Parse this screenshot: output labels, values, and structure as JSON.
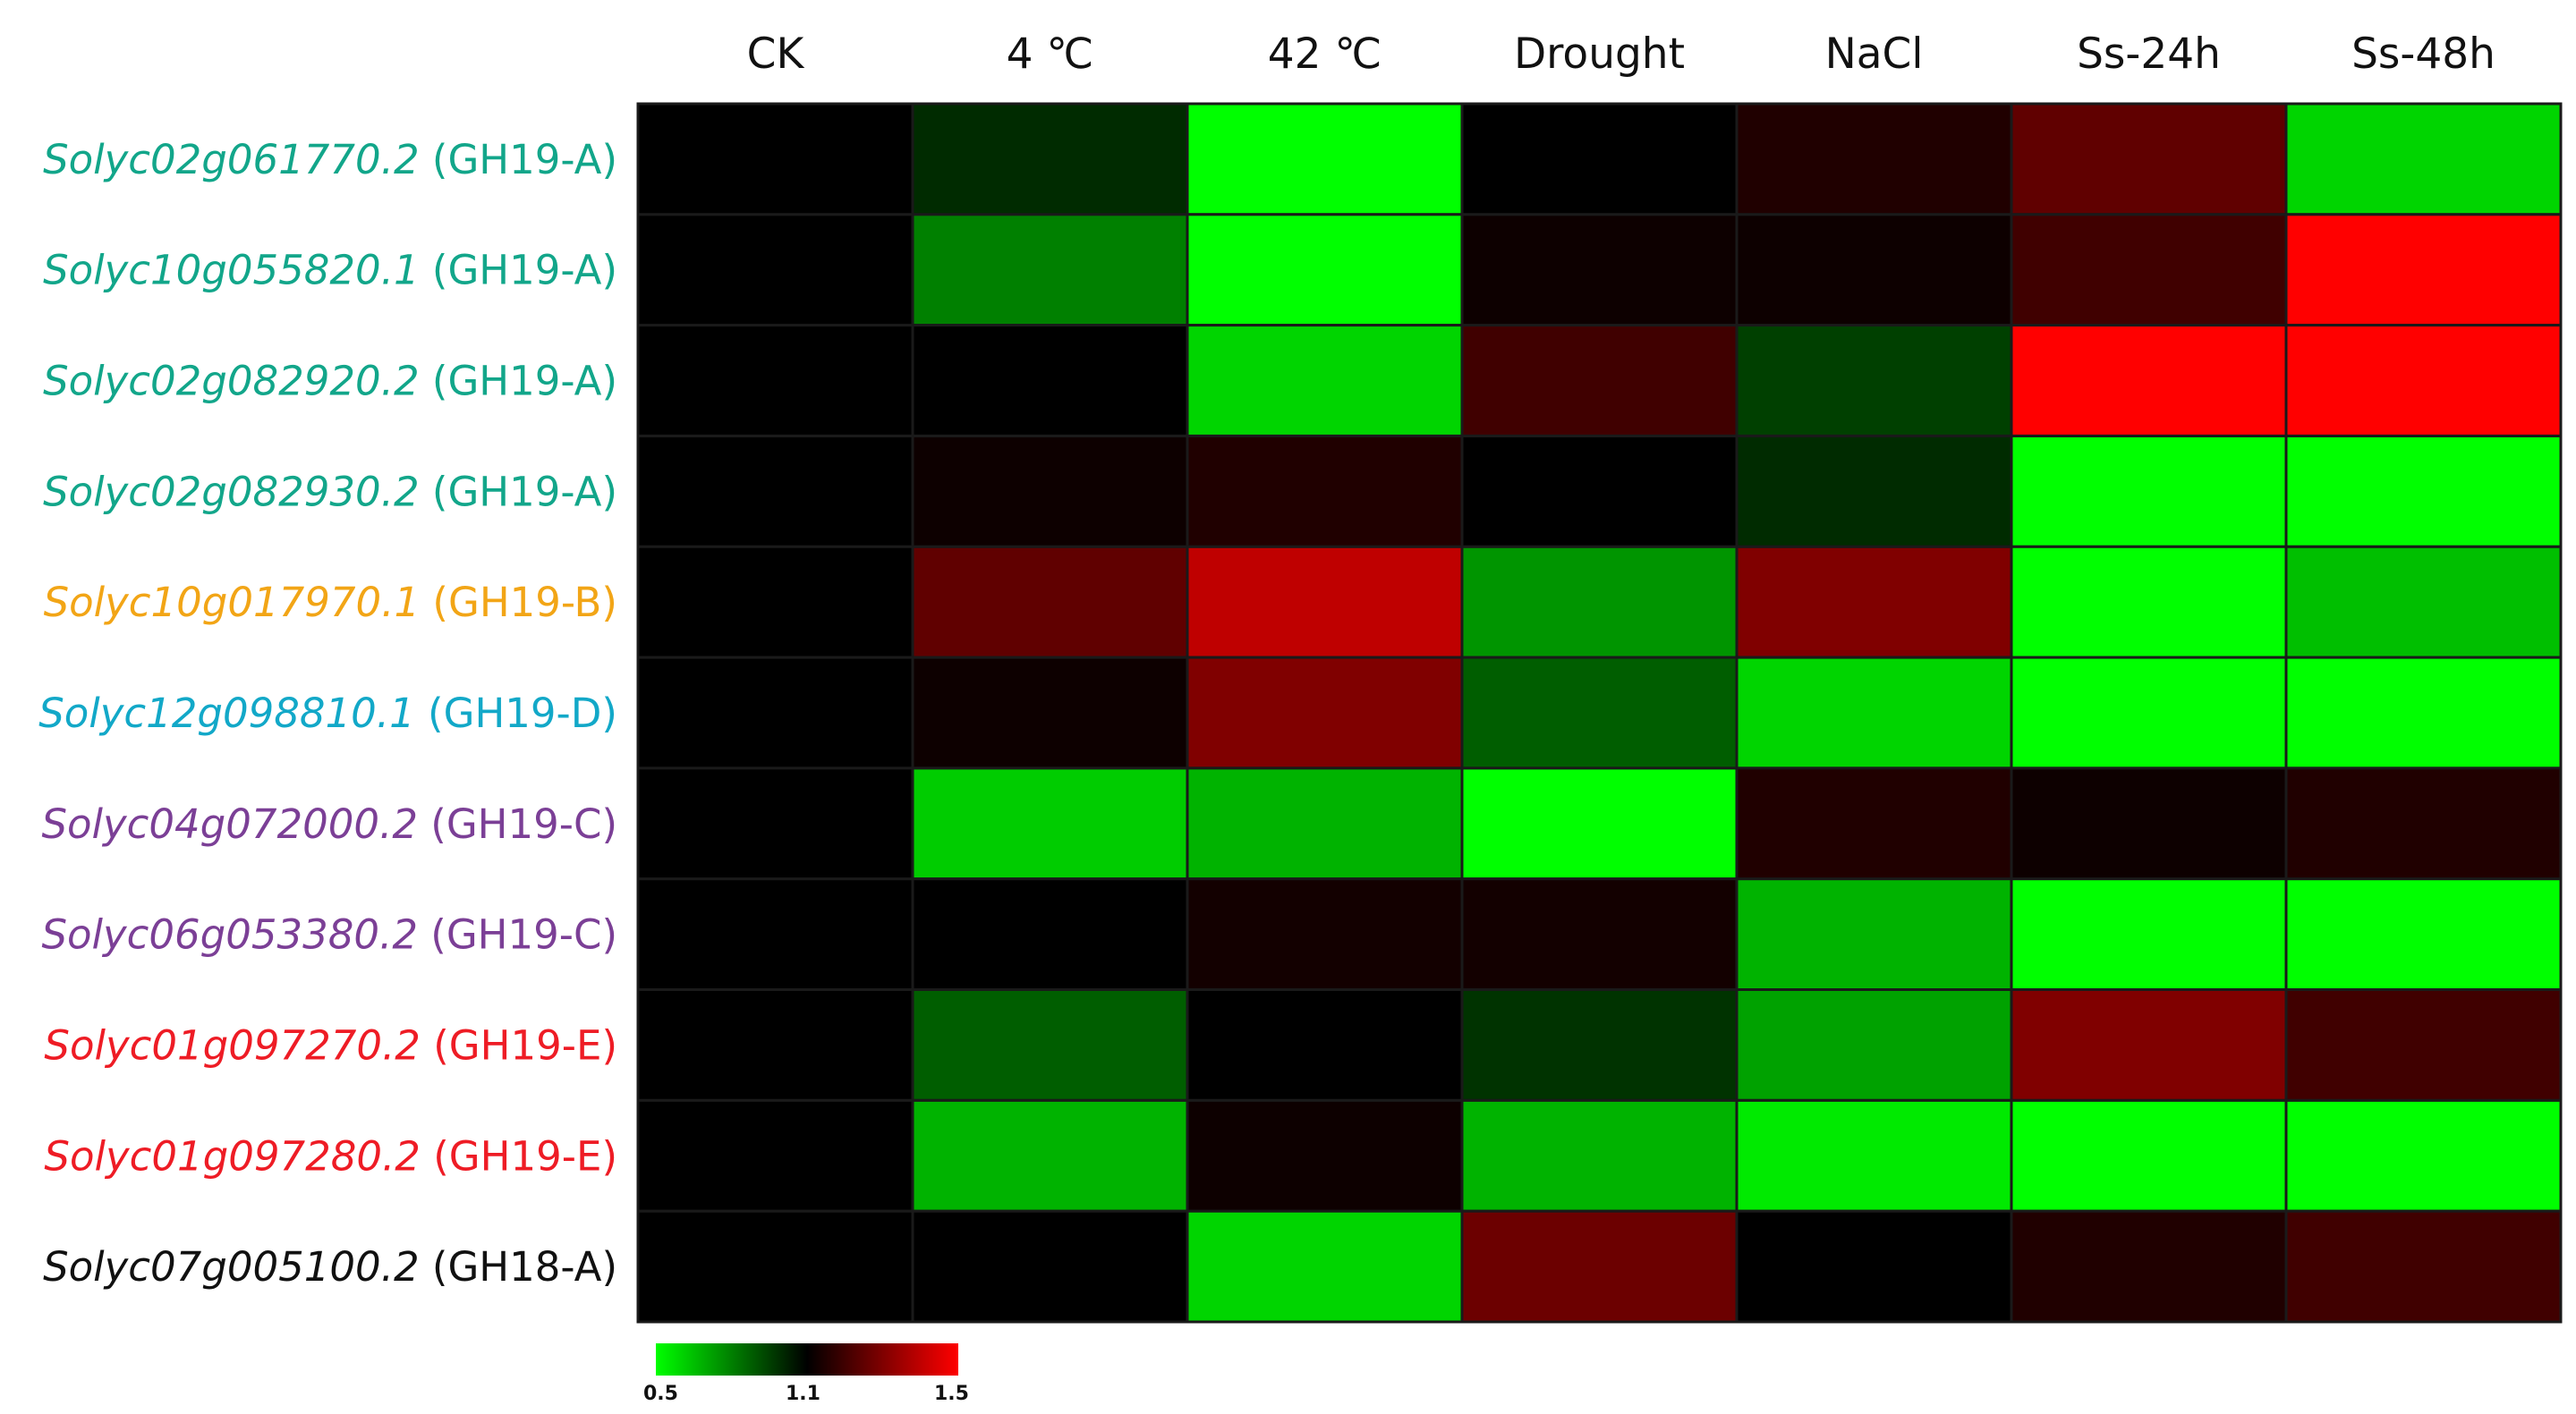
{
  "chart_data": {
    "type": "heatmap",
    "columns": [
      "CK",
      "4 ℃",
      "42 ℃",
      "Drought",
      "NaCl",
      "Ss-24h",
      "Ss-48h"
    ],
    "rows": [
      {
        "id": "Solyc02g061770.2",
        "group": "(GH19-A)",
        "color": "#12a68a"
      },
      {
        "id": "Solyc10g055820.1",
        "group": "(GH19-A)",
        "color": "#12a68a"
      },
      {
        "id": "Solyc02g082920.2",
        "group": "(GH19-A)",
        "color": "#12a68a"
      },
      {
        "id": "Solyc02g082930.2",
        "group": "(GH19-A)",
        "color": "#12a68a"
      },
      {
        "id": "Solyc10g017970.1",
        "group": "(GH19-B)",
        "color": "#f2a516"
      },
      {
        "id": "Solyc12g098810.1",
        "group": "(GH19-D)",
        "color": "#12a8c8"
      },
      {
        "id": "Solyc04g072000.2",
        "group": "(GH19-C)",
        "color": "#7b3f96"
      },
      {
        "id": "Solyc06g053380.2",
        "group": "(GH19-C)",
        "color": "#7b3f96"
      },
      {
        "id": "Solyc01g097270.2",
        "group": "(GH19-E)",
        "color": "#ee1c25"
      },
      {
        "id": "Solyc01g097280.2",
        "group": "(GH19-E)",
        "color": "#ee1c25"
      },
      {
        "id": "Solyc07g005100.2",
        "group": "(GH18-A)",
        "color": "#111111"
      }
    ],
    "values": [
      [
        1.1,
        1.0,
        0.5,
        1.1,
        1.15,
        1.25,
        0.6
      ],
      [
        1.1,
        0.8,
        0.5,
        1.12,
        1.12,
        1.2,
        1.5
      ],
      [
        1.1,
        1.1,
        0.6,
        1.2,
        0.95,
        1.5,
        1.5
      ],
      [
        1.1,
        1.12,
        1.15,
        1.1,
        1.0,
        0.5,
        0.5
      ],
      [
        1.1,
        1.25,
        1.4,
        0.75,
        1.3,
        0.5,
        0.65
      ],
      [
        1.1,
        1.12,
        1.3,
        0.88,
        0.6,
        0.5,
        0.5
      ],
      [
        1.1,
        0.62,
        0.68,
        0.5,
        1.15,
        1.12,
        1.15
      ],
      [
        1.1,
        1.1,
        1.13,
        1.13,
        0.68,
        0.5,
        0.5
      ],
      [
        1.1,
        0.88,
        1.1,
        0.98,
        0.72,
        1.3,
        1.2
      ],
      [
        1.1,
        0.68,
        1.12,
        0.68,
        0.55,
        0.5,
        0.5
      ],
      [
        1.1,
        1.1,
        0.6,
        1.27,
        1.1,
        1.15,
        1.2
      ]
    ],
    "color_scale": {
      "min": 0.5,
      "mid": 1.1,
      "max": 1.5,
      "min_color": "#00ff00",
      "mid_color": "#000000",
      "max_color": "#ff0000"
    },
    "legend_ticks": [
      "0.5",
      "1.1",
      "1.5"
    ]
  }
}
